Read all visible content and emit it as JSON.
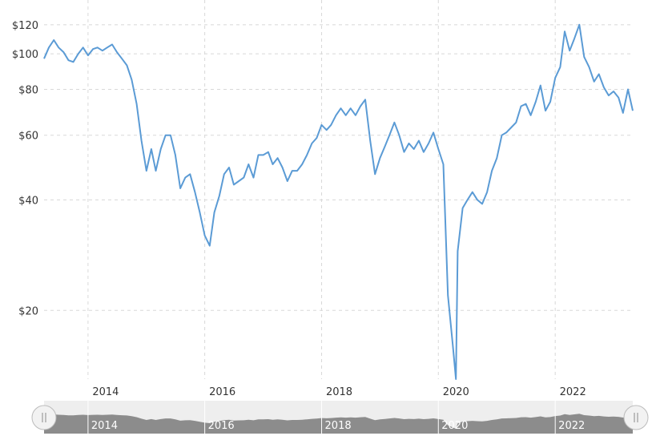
{
  "chart_data": {
    "type": "line",
    "scale": "log",
    "grid": true,
    "yticks": [
      {
        "value": 20,
        "label": "$20"
      },
      {
        "value": 40,
        "label": "$40"
      },
      {
        "value": 60,
        "label": "$60"
      },
      {
        "value": 80,
        "label": "$80"
      },
      {
        "value": 100,
        "label": "$100"
      },
      {
        "value": 120,
        "label": "$120"
      }
    ],
    "xticks": [
      {
        "value": "2014-01-01",
        "label": "2014"
      },
      {
        "value": "2016-01-01",
        "label": "2016"
      },
      {
        "value": "2018-01-01",
        "label": "2018"
      },
      {
        "value": "2020-01-01",
        "label": "2020"
      },
      {
        "value": "2022-01-01",
        "label": "2022"
      }
    ],
    "xlim": [
      "2013-04-01",
      "2023-05-01"
    ],
    "ylim": [
      13,
      128
    ],
    "series": [
      {
        "color": "#5b9bd5",
        "points": [
          [
            "2013-04-01",
            97
          ],
          [
            "2013-05-01",
            104
          ],
          [
            "2013-06-01",
            109
          ],
          [
            "2013-07-01",
            104
          ],
          [
            "2013-08-01",
            101
          ],
          [
            "2013-09-01",
            96
          ],
          [
            "2013-10-01",
            95
          ],
          [
            "2013-11-01",
            100
          ],
          [
            "2013-12-01",
            104
          ],
          [
            "2014-01-01",
            99
          ],
          [
            "2014-02-01",
            103
          ],
          [
            "2014-03-01",
            104
          ],
          [
            "2014-04-01",
            102
          ],
          [
            "2014-05-01",
            104
          ],
          [
            "2014-06-01",
            106
          ],
          [
            "2014-07-01",
            101
          ],
          [
            "2014-08-01",
            97
          ],
          [
            "2014-09-01",
            93
          ],
          [
            "2014-10-01",
            85
          ],
          [
            "2014-11-01",
            73
          ],
          [
            "2014-12-01",
            58
          ],
          [
            "2015-01-01",
            48
          ],
          [
            "2015-02-01",
            55
          ],
          [
            "2015-03-01",
            48
          ],
          [
            "2015-04-01",
            55
          ],
          [
            "2015-05-01",
            60
          ],
          [
            "2015-06-01",
            60
          ],
          [
            "2015-07-01",
            53
          ],
          [
            "2015-08-01",
            43
          ],
          [
            "2015-09-01",
            46
          ],
          [
            "2015-10-01",
            47
          ],
          [
            "2015-11-01",
            42
          ],
          [
            "2015-12-01",
            37
          ],
          [
            "2016-01-01",
            32
          ],
          [
            "2016-02-01",
            30
          ],
          [
            "2016-03-01",
            37
          ],
          [
            "2016-04-01",
            41
          ],
          [
            "2016-05-01",
            47
          ],
          [
            "2016-06-01",
            49
          ],
          [
            "2016-07-01",
            44
          ],
          [
            "2016-08-01",
            45
          ],
          [
            "2016-09-01",
            46
          ],
          [
            "2016-10-01",
            50
          ],
          [
            "2016-11-01",
            46
          ],
          [
            "2016-12-01",
            53
          ],
          [
            "2017-01-01",
            53
          ],
          [
            "2017-02-01",
            54
          ],
          [
            "2017-03-01",
            50
          ],
          [
            "2017-04-01",
            52
          ],
          [
            "2017-05-01",
            49
          ],
          [
            "2017-06-01",
            45
          ],
          [
            "2017-07-01",
            48
          ],
          [
            "2017-08-01",
            48
          ],
          [
            "2017-09-01",
            50
          ],
          [
            "2017-10-01",
            53
          ],
          [
            "2017-11-01",
            57
          ],
          [
            "2017-12-01",
            59
          ],
          [
            "2018-01-01",
            64
          ],
          [
            "2018-02-01",
            62
          ],
          [
            "2018-03-01",
            64
          ],
          [
            "2018-04-01",
            68
          ],
          [
            "2018-05-01",
            71
          ],
          [
            "2018-06-01",
            68
          ],
          [
            "2018-07-01",
            71
          ],
          [
            "2018-08-01",
            68
          ],
          [
            "2018-09-01",
            72
          ],
          [
            "2018-10-01",
            75
          ],
          [
            "2018-11-01",
            58
          ],
          [
            "2018-12-01",
            47
          ],
          [
            "2019-01-01",
            52
          ],
          [
            "2019-02-01",
            56
          ],
          [
            "2019-03-01",
            60
          ],
          [
            "2019-04-01",
            65
          ],
          [
            "2019-05-01",
            60
          ],
          [
            "2019-06-01",
            54
          ],
          [
            "2019-07-01",
            57
          ],
          [
            "2019-08-01",
            55
          ],
          [
            "2019-09-01",
            58
          ],
          [
            "2019-10-01",
            54
          ],
          [
            "2019-11-01",
            57
          ],
          [
            "2019-12-01",
            61
          ],
          [
            "2020-01-01",
            55
          ],
          [
            "2020-02-01",
            50
          ],
          [
            "2020-03-01",
            22
          ],
          [
            "2020-04-01",
            16
          ],
          [
            "2020-04-20",
            13
          ],
          [
            "2020-05-01",
            29
          ],
          [
            "2020-06-01",
            38
          ],
          [
            "2020-07-01",
            40
          ],
          [
            "2020-08-01",
            42
          ],
          [
            "2020-09-01",
            40
          ],
          [
            "2020-10-01",
            39
          ],
          [
            "2020-11-01",
            42
          ],
          [
            "2020-12-01",
            48
          ],
          [
            "2021-01-01",
            52
          ],
          [
            "2021-02-01",
            60
          ],
          [
            "2021-03-01",
            61
          ],
          [
            "2021-04-01",
            63
          ],
          [
            "2021-05-01",
            65
          ],
          [
            "2021-06-01",
            72
          ],
          [
            "2021-07-01",
            73
          ],
          [
            "2021-08-01",
            68
          ],
          [
            "2021-09-01",
            74
          ],
          [
            "2021-10-01",
            82
          ],
          [
            "2021-11-01",
            70
          ],
          [
            "2021-12-01",
            74
          ],
          [
            "2022-01-01",
            86
          ],
          [
            "2022-02-01",
            92
          ],
          [
            "2022-03-01",
            115
          ],
          [
            "2022-04-01",
            102
          ],
          [
            "2022-05-01",
            110
          ],
          [
            "2022-06-01",
            120
          ],
          [
            "2022-07-01",
            98
          ],
          [
            "2022-08-01",
            92
          ],
          [
            "2022-09-01",
            84
          ],
          [
            "2022-10-01",
            88
          ],
          [
            "2022-11-01",
            81
          ],
          [
            "2022-12-01",
            77
          ],
          [
            "2023-01-01",
            79
          ],
          [
            "2023-02-01",
            76
          ],
          [
            "2023-03-01",
            69
          ],
          [
            "2023-04-01",
            80
          ],
          [
            "2023-05-01",
            70
          ]
        ]
      }
    ],
    "navigator": {
      "xticks": [
        "2014",
        "2016",
        "2018",
        "2020",
        "2022"
      ],
      "fill": "#8c8c8c"
    }
  }
}
